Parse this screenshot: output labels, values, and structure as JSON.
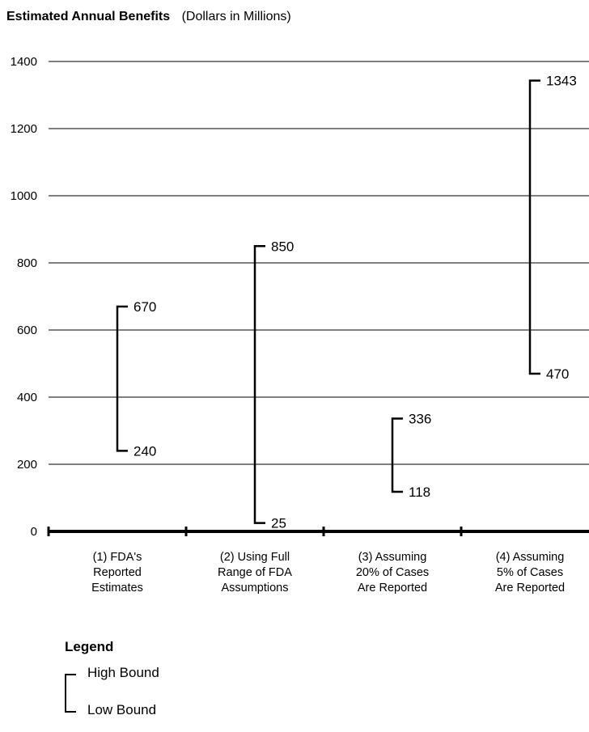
{
  "chart_data": {
    "type": "range",
    "title": "Estimated Annual Benefits",
    "subtitle": "(Dollars in Millions)",
    "ylim": [
      0,
      1400
    ],
    "yticks": [
      0,
      200,
      400,
      600,
      800,
      1000,
      1200,
      1400
    ],
    "grid": true,
    "categories": [
      [
        "(1) FDA's",
        "Reported",
        "Estimates"
      ],
      [
        "(2) Using Full",
        "Range of FDA",
        "Assumptions"
      ],
      [
        "(3) Assuming",
        "20% of Cases",
        "Are Reported"
      ],
      [
        "(4) Assuming",
        "5% of Cases",
        "Are Reported"
      ]
    ],
    "series": [
      {
        "name": "High Bound",
        "values": [
          670,
          850,
          336,
          1343
        ]
      },
      {
        "name": "Low Bound",
        "values": [
          240,
          25,
          118,
          470
        ]
      }
    ],
    "legend": {
      "title": "Legend",
      "placement": "bottom-left",
      "high_label": "High Bound",
      "low_label": "Low Bound"
    }
  }
}
